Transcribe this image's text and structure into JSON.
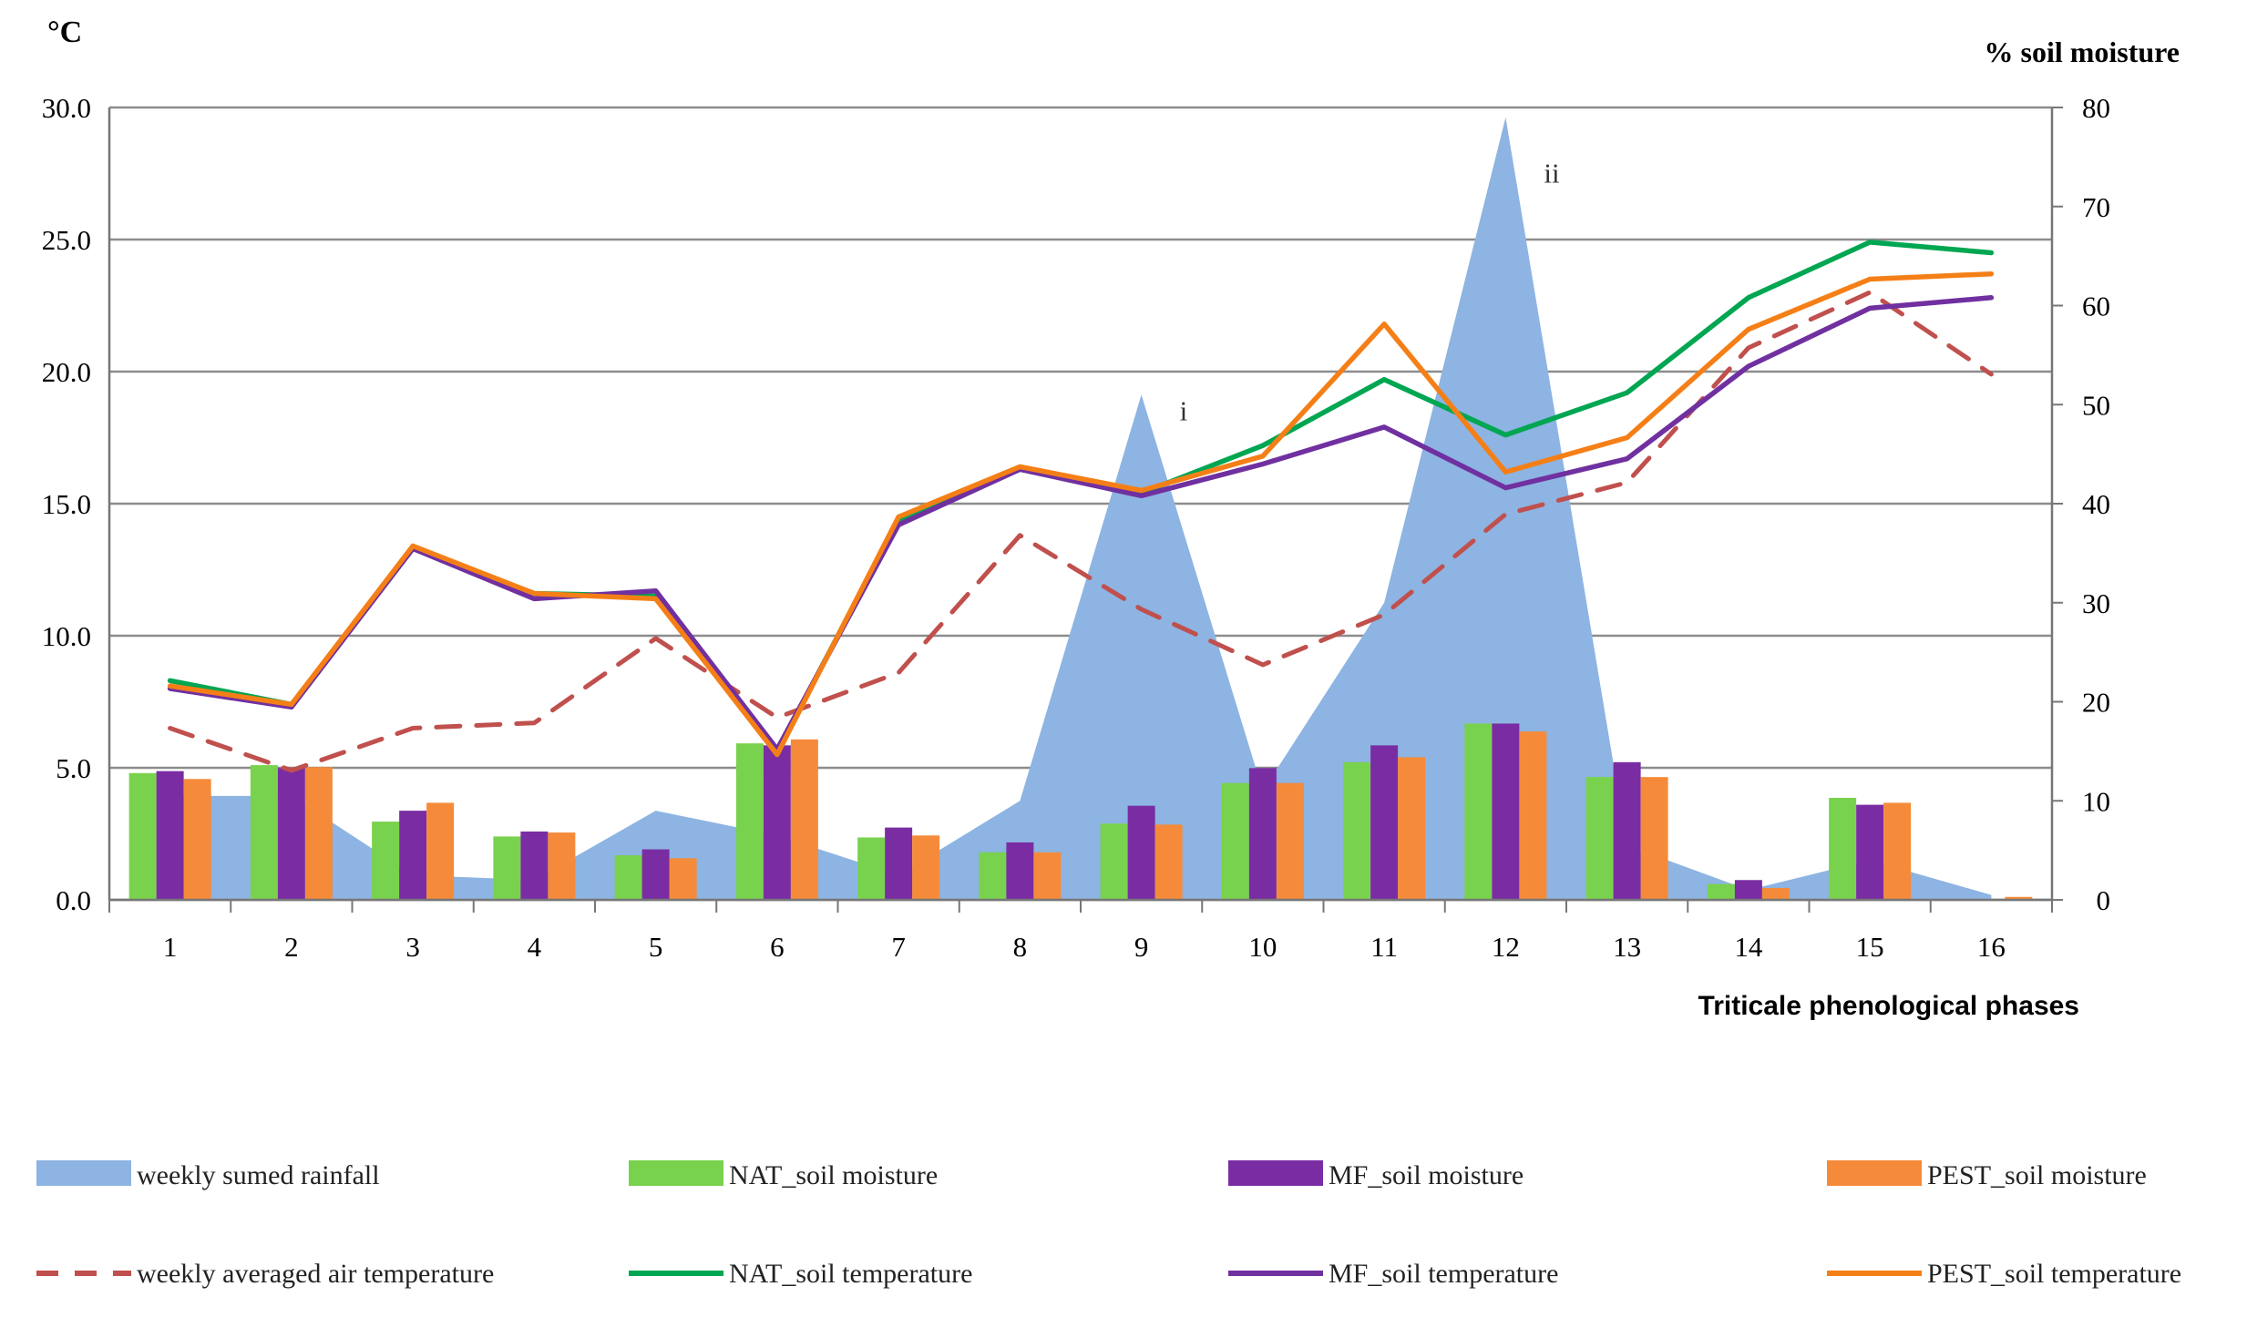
{
  "chart_data": {
    "type": "combo",
    "title": "",
    "left_axis_unit": "°C",
    "right_axis_unit": "% soil moisture",
    "xlabel": "Triticale phenological phases",
    "categories": [
      "1",
      "2",
      "3",
      "4",
      "5",
      "6",
      "7",
      "8",
      "9",
      "10",
      "11",
      "12",
      "13",
      "14",
      "15",
      "16"
    ],
    "y_left": {
      "min": 0,
      "max": 30,
      "ticks": [
        "0.0",
        "5.0",
        "10.0",
        "15.0",
        "20.0",
        "25.0",
        "30.0"
      ]
    },
    "y_right": {
      "min": 0,
      "max": 80,
      "ticks": [
        "0",
        "10",
        "20",
        "30",
        "40",
        "50",
        "60",
        "70",
        "80"
      ]
    },
    "grid": true,
    "area_series": {
      "name": "weekly sumed rainfall",
      "axis": "right",
      "color": "#8db4e2",
      "values": [
        10.5,
        10.5,
        2.5,
        2,
        9,
        6.5,
        2.5,
        10,
        51,
        11,
        30,
        79,
        5.5,
        1,
        4,
        0.5
      ]
    },
    "bar_series": [
      {
        "name": "NAT_soil moisture",
        "axis": "right",
        "color": "#79d24d",
        "values": [
          12.8,
          13.6,
          7.9,
          6.4,
          4.5,
          15.8,
          6.3,
          4.8,
          7.7,
          11.8,
          13.9,
          17.8,
          12.4,
          1.6,
          10.3,
          0
        ]
      },
      {
        "name": "MF_soil moisture",
        "axis": "right",
        "color": "#7a2da3",
        "values": [
          13.0,
          13.3,
          9.0,
          6.9,
          5.1,
          15.6,
          7.3,
          5.8,
          9.5,
          13.3,
          15.6,
          17.8,
          13.9,
          2.0,
          9.6,
          0
        ]
      },
      {
        "name": "PEST_soil moisture",
        "axis": "right",
        "color": "#f58b3a",
        "values": [
          12.2,
          13.4,
          9.8,
          6.8,
          4.2,
          16.2,
          6.5,
          4.8,
          7.6,
          11.8,
          14.4,
          17.0,
          12.4,
          1.2,
          9.8,
          0.3
        ]
      }
    ],
    "line_series": [
      {
        "name": "weekly averaged air temperature",
        "axis": "left",
        "color": "#c0504d",
        "dashed": true,
        "values": [
          6.5,
          4.9,
          6.5,
          6.7,
          9.9,
          6.9,
          8.6,
          13.8,
          11.0,
          8.9,
          10.8,
          14.6,
          15.8,
          20.9,
          23.0,
          19.9
        ]
      },
      {
        "name": "NAT_soil temperature",
        "axis": "left",
        "color": "#00a651",
        "values": [
          8.3,
          7.4,
          13.3,
          11.6,
          11.5,
          5.6,
          14.4,
          16.3,
          15.4,
          17.2,
          19.7,
          17.6,
          19.2,
          22.8,
          24.9,
          24.5
        ]
      },
      {
        "name": "MF_soil temperature",
        "axis": "left",
        "color": "#7030a0",
        "values": [
          8.0,
          7.3,
          13.3,
          11.4,
          11.7,
          5.7,
          14.2,
          16.3,
          15.3,
          16.5,
          17.9,
          15.6,
          16.7,
          20.2,
          22.4,
          22.8
        ]
      },
      {
        "name": "PEST_soil temperature",
        "axis": "left",
        "color": "#f57f17",
        "values": [
          8.1,
          7.4,
          13.4,
          11.6,
          11.4,
          5.5,
          14.5,
          16.4,
          15.5,
          16.8,
          21.8,
          16.2,
          17.5,
          21.6,
          23.5,
          23.7
        ]
      }
    ],
    "annotations": [
      {
        "text": "i",
        "category": "9",
        "value": 18.5,
        "axis": "left"
      },
      {
        "text": "ii",
        "category": "12",
        "value": 27.5,
        "axis": "left"
      }
    ],
    "legend_position": "bottom"
  }
}
